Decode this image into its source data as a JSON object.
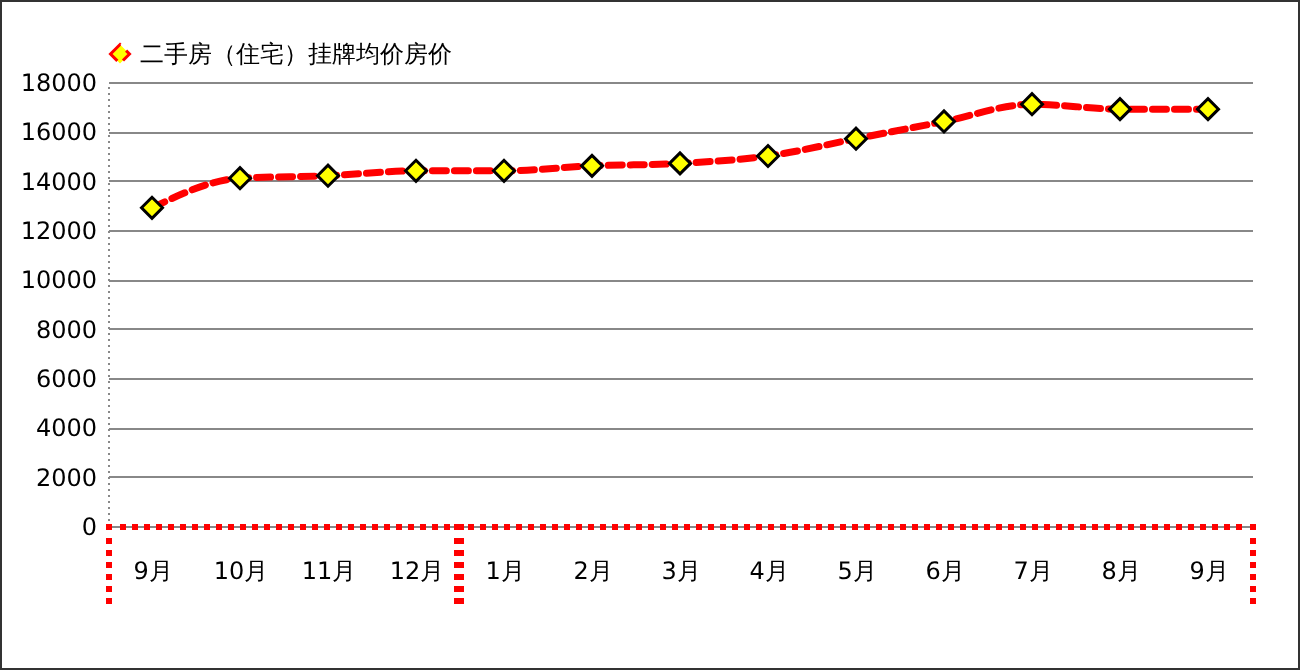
{
  "chart_data": {
    "type": "line",
    "categories": [
      "9月",
      "10月",
      "11月",
      "12月",
      "1月",
      "2月",
      "3月",
      "4月",
      "5月",
      "6月",
      "7月",
      "8月",
      "9月"
    ],
    "series": [
      {
        "name": "二手房（住宅）挂牌均价房价",
        "color": "#ff0000",
        "values": [
          12900,
          14100,
          14200,
          14400,
          14400,
          14600,
          14700,
          15000,
          15700,
          16400,
          17100,
          16900,
          16900
        ]
      }
    ],
    "ylim": [
      0,
      18000
    ],
    "yticks": [
      0,
      2000,
      4000,
      6000,
      8000,
      10000,
      12000,
      14000,
      16000,
      18000
    ],
    "grid": "y",
    "legend": "top",
    "marker": "diamond",
    "line_style": "dashed"
  }
}
